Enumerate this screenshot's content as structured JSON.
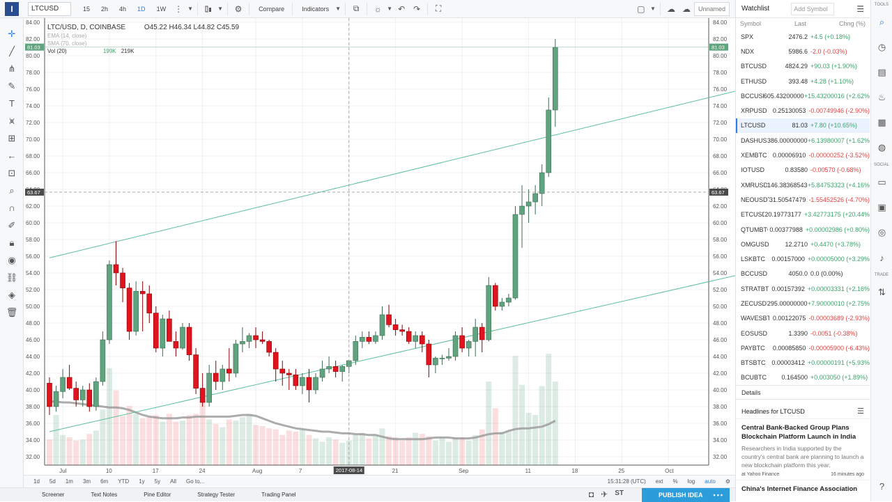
{
  "topbar": {
    "logo": "I",
    "symbol": "LTCUSD",
    "intervals": [
      "15",
      "2h",
      "4h",
      "1D",
      "1W"
    ],
    "active_interval": "1D",
    "compare": "Compare",
    "indicators": "Indicators",
    "layout_name": "Unnamed"
  },
  "legend": {
    "title": "LTC/USD, D, COINBASE",
    "open": "O45.22",
    "high": "H46.34",
    "low": "L44.82",
    "close": "C45.59",
    "ema14": "EMA (14, close)",
    "sma70": "SMA (70, close)",
    "vol": "Vol (20)",
    "vol_a": "199K",
    "vol_b": "219K"
  },
  "chart_data": {
    "type": "candlestick",
    "symbol": "LTC/USD",
    "y_ticks": [
      32,
      34,
      36,
      38,
      40,
      42,
      44,
      46,
      48,
      50,
      52,
      54,
      56,
      58,
      60,
      62,
      64,
      66,
      68,
      70,
      72,
      74,
      76,
      78,
      80,
      82,
      84
    ],
    "ylim": [
      31,
      84.5
    ],
    "x_ticks": [
      "Jul",
      "10",
      "17",
      "24",
      "Aug",
      "7",
      "14",
      "21",
      "Sep",
      "11",
      "18",
      "25",
      "Oct"
    ],
    "crosshair_price": "63.67",
    "crosshair_date": "2017-08-14",
    "last_price": "81.03",
    "candles": [
      [
        40.8,
        41.5,
        37.0,
        38.0
      ],
      [
        38.0,
        40.5,
        37.4,
        39.8
      ],
      [
        39.8,
        42.5,
        39.0,
        41.5
      ],
      [
        41.5,
        43.0,
        40.0,
        40.2
      ],
      [
        40.2,
        41.0,
        38.0,
        38.8
      ],
      [
        38.8,
        40.5,
        38.0,
        40.0
      ],
      [
        40.0,
        40.8,
        37.4,
        38.0
      ],
      [
        38.0,
        41.5,
        37.5,
        41.0
      ],
      [
        41.0,
        47.0,
        40.5,
        46.0
      ],
      [
        46.0,
        55.5,
        45.5,
        55.0
      ],
      [
        55.0,
        57.8,
        52.5,
        54.0
      ],
      [
        54.0,
        54.6,
        50.5,
        52.2
      ],
      [
        52.2,
        52.8,
        46.0,
        47.0
      ],
      [
        47.0,
        53.0,
        46.5,
        51.8
      ],
      [
        51.8,
        53.0,
        47.0,
        51.5
      ],
      [
        51.5,
        52.5,
        48.0,
        49.2
      ],
      [
        49.2,
        50.0,
        44.5,
        45.0
      ],
      [
        45.0,
        49.0,
        44.0,
        48.5
      ],
      [
        48.5,
        49.5,
        46.0,
        45.8
      ],
      [
        45.8,
        47.0,
        44.0,
        45.0
      ],
      [
        45.0,
        48.0,
        44.8,
        47.5
      ],
      [
        47.5,
        48.0,
        43.5,
        44.2
      ],
      [
        44.2,
        45.0,
        39.5,
        40.2
      ],
      [
        40.2,
        42.0,
        38.0,
        38.5
      ],
      [
        38.5,
        43.0,
        38.0,
        42.0
      ],
      [
        42.0,
        43.5,
        40.0,
        41.0
      ],
      [
        41.0,
        43.0,
        40.0,
        42.5
      ],
      [
        42.5,
        45.0,
        41.0,
        42.0
      ],
      [
        42.0,
        46.0,
        41.5,
        45.5
      ],
      [
        45.5,
        47.5,
        44.5,
        45.8
      ],
      [
        45.8,
        46.8,
        45.0,
        46.5
      ],
      [
        46.5,
        47.5,
        45.0,
        46.0
      ],
      [
        46.0,
        47.0,
        45.5,
        45.8
      ],
      [
        45.8,
        46.0,
        44.0,
        44.5
      ],
      [
        44.5,
        45.0,
        41.0,
        42.5
      ],
      [
        42.5,
        43.5,
        40.5,
        42.0
      ],
      [
        42.0,
        42.5,
        40.0,
        41.8
      ],
      [
        41.8,
        42.5,
        40.0,
        40.5
      ],
      [
        40.5,
        42.0,
        39.5,
        41.5
      ],
      [
        41.5,
        42.5,
        38.5,
        40.0
      ],
      [
        40.0,
        42.0,
        39.5,
        41.5
      ],
      [
        41.5,
        43.5,
        41.0,
        42.5
      ],
      [
        42.5,
        44.0,
        42.0,
        42.8
      ],
      [
        42.8,
        43.5,
        41.5,
        42.2
      ],
      [
        42.2,
        43.0,
        41.0,
        42.8
      ],
      [
        42.8,
        43.5,
        42.0,
        43.5
      ],
      [
        43.5,
        46.5,
        43.0,
        45.8
      ],
      [
        45.8,
        47.0,
        45.0,
        46.3
      ],
      [
        46.3,
        47.0,
        45.5,
        45.8
      ],
      [
        45.8,
        47.0,
        45.5,
        46.5
      ],
      [
        46.5,
        50.0,
        46.0,
        49.0
      ],
      [
        49.0,
        50.2,
        47.5,
        47.8
      ],
      [
        47.8,
        48.5,
        46.5,
        47.2
      ],
      [
        47.2,
        47.8,
        46.5,
        47.0
      ],
      [
        47.0,
        47.5,
        45.5,
        45.8
      ],
      [
        45.8,
        47.0,
        45.0,
        46.5
      ],
      [
        46.5,
        47.0,
        44.5,
        45.5
      ],
      [
        45.5,
        46.0,
        41.5,
        43.0
      ],
      [
        43.0,
        44.0,
        42.0,
        43.8
      ],
      [
        43.8,
        44.2,
        43.0,
        43.8
      ],
      [
        43.8,
        45.0,
        43.5,
        44.0
      ],
      [
        44.0,
        47.0,
        43.5,
        46.5
      ],
      [
        46.5,
        47.5,
        44.5,
        45.0
      ],
      [
        45.0,
        46.0,
        44.0,
        45.8
      ],
      [
        45.8,
        48.5,
        44.0,
        47.5
      ],
      [
        47.5,
        48.0,
        44.5,
        46.0
      ],
      [
        46.0,
        53.5,
        45.8,
        52.5
      ],
      [
        52.5,
        52.8,
        49.5,
        50.0
      ],
      [
        50.0,
        51.0,
        49.5,
        50.5
      ],
      [
        50.5,
        51.5,
        50.0,
        51.0
      ],
      [
        51.0,
        62.0,
        50.8,
        61.0
      ],
      [
        61.0,
        64.5,
        57.0,
        62.0
      ],
      [
        62.0,
        64.0,
        60.0,
        62.5
      ],
      [
        62.5,
        64.5,
        61.0,
        63.5
      ],
      [
        63.5,
        67.0,
        62.0,
        66.0
      ],
      [
        66.0,
        75.0,
        65.5,
        73.5
      ],
      [
        73.5,
        82.0,
        71.5,
        81.0
      ]
    ],
    "volumes": [
      0.23,
      0.45,
      0.27,
      0.25,
      0.22,
      0.23,
      0.28,
      0.31,
      0.5,
      0.87,
      0.67,
      0.44,
      0.53,
      0.46,
      0.42,
      0.43,
      0.45,
      0.39,
      0.46,
      0.39,
      0.4,
      0.45,
      0.46,
      0.58,
      0.41,
      0.37,
      0.34,
      0.41,
      0.4,
      0.43,
      0.46,
      0.36,
      0.35,
      0.33,
      0.32,
      0.27,
      0.31,
      0.3,
      0.32,
      0.27,
      0.24,
      0.21,
      0.25,
      0.23,
      0.2,
      0.22,
      0.27,
      0.29,
      0.24,
      0.27,
      0.33,
      0.26,
      0.25,
      0.22,
      0.25,
      0.29,
      0.28,
      0.26,
      0.22,
      0.24,
      0.21,
      0.25,
      0.25,
      0.22,
      0.27,
      0.32,
      0.75,
      0.51,
      0.3,
      0.31,
      0.98,
      0.72,
      0.47,
      0.45,
      0.71,
      1.0,
      0.75
    ],
    "ma_line": [
      38.6,
      38.6,
      38.5,
      38.5,
      38.4,
      38.3,
      38.2,
      38.1,
      38.0,
      37.9,
      37.9,
      37.8,
      37.6,
      37.3,
      37.0,
      36.8,
      36.7,
      36.6,
      36.6,
      36.6,
      36.7,
      36.7,
      36.8,
      36.8,
      36.8,
      36.8,
      36.8,
      36.8,
      36.9,
      37.0,
      37.0,
      36.9,
      36.6,
      36.3,
      36.0,
      35.8,
      35.6,
      35.4,
      35.3,
      35.2,
      35.1,
      35.0,
      35.0,
      34.9,
      34.8,
      34.8,
      34.7,
      34.7,
      34.6,
      34.6,
      34.4,
      34.2,
      34.1,
      34.1,
      34.1,
      34.1,
      34.1,
      34.2,
      34.3,
      34.3,
      34.3,
      34.2,
      34.2,
      34.2,
      34.3,
      34.5,
      34.7,
      34.8,
      34.8,
      35.1,
      35.3,
      35.4,
      35.4,
      35.5,
      35.6,
      35.9,
      36.3
    ],
    "trendlines": [
      {
        "from": [
          0,
          55.8
        ],
        "to": [
          110,
          77.1
        ]
      },
      {
        "from": [
          0,
          35.0
        ],
        "to": [
          128,
          58.2
        ]
      }
    ]
  },
  "bottombar": {
    "ranges": [
      "1d",
      "5d",
      "1m",
      "3m",
      "6m",
      "YTD",
      "1y",
      "5y",
      "All"
    ],
    "goto": "Go to...",
    "time": "15:31:28 (UTC)",
    "opts": [
      "ext",
      "%",
      "log",
      "auto"
    ]
  },
  "footer": {
    "tabs": [
      "Screener",
      "Text Notes",
      "Pine Editor",
      "Strategy Tester",
      "Trading Panel"
    ],
    "publish": "PUBLISH IDEA"
  },
  "watchlist": {
    "title": "Watchlist",
    "add_placeholder": "Add Symbol",
    "col_symbol": "Symbol",
    "col_last": "Last",
    "col_chg": "Chng (%)",
    "rows": [
      {
        "sym": "SPX",
        "last": "2476.2",
        "chg": "+4.5 (+0.18%)",
        "dir": "up"
      },
      {
        "sym": "NDX",
        "last": "5986.6",
        "chg": "-2.0 (-0.03%)",
        "dir": "down"
      },
      {
        "sym": "BTCUSD",
        "last": "4824.29",
        "chg": "+90.03 (+1.90%)",
        "dir": "up"
      },
      {
        "sym": "ETHUSD",
        "last": "393.48",
        "chg": "+4.28 (+1.10%)",
        "dir": "up"
      },
      {
        "sym": "BCCUSD",
        "last": "605.43200000",
        "chg": "+15.43200016 (+2.62%",
        "dir": "up"
      },
      {
        "sym": "XRPUSD",
        "last": "0.25130053",
        "chg": "-0.00749946 (-2.90%)",
        "dir": "down"
      },
      {
        "sym": "LTCUSD",
        "last": "81.03",
        "chg": "+7.80 (+10.65%)",
        "dir": "up",
        "selected": true
      },
      {
        "sym": "DASHUSD",
        "last": "386.00000000",
        "chg": "+6.13980007 (+1.62%",
        "dir": "up"
      },
      {
        "sym": "XEMBTC",
        "last": "0.00006910",
        "chg": "-0.00000252 (-3.52%)",
        "dir": "down"
      },
      {
        "sym": "IOTUSD",
        "last": "0.83580",
        "chg": "-0.00570 (-0.68%)",
        "dir": "down"
      },
      {
        "sym": "XMRUSDT",
        "last": "146.38368543",
        "chg": "+5.84753323 (+4.16%",
        "dir": "up"
      },
      {
        "sym": "NEOUSDT",
        "last": "31.50547479",
        "chg": "-1.55452526 (-4.70%)",
        "dir": "down"
      },
      {
        "sym": "ETCUSDT",
        "last": "20.19773177",
        "chg": "+3.42773175 (+20.44%",
        "dir": "up"
      },
      {
        "sym": "QTUMBTC",
        "last": "0.00377988",
        "chg": "+0.00002986 (+0.80%)",
        "dir": "up"
      },
      {
        "sym": "OMGUSD",
        "last": "12.2710",
        "chg": "+0.4470 (+3.78%)",
        "dir": "up"
      },
      {
        "sym": "LSKBTC",
        "last": "0.00157000",
        "chg": "+0.00005000 (+3.29%",
        "dir": "up"
      },
      {
        "sym": "BCCUSD",
        "last": "4050.0",
        "chg": "0.0 (0.00%)",
        "dir": "flat"
      },
      {
        "sym": "STRATBTC",
        "last": "0.00157392",
        "chg": "+0.00003331 (+2.16%",
        "dir": "up"
      },
      {
        "sym": "ZECUSDT",
        "last": "295.00000000",
        "chg": "+7.90000010 (+2.75%",
        "dir": "up"
      },
      {
        "sym": "WAVESBTC",
        "last": "0.00122075",
        "chg": "-0.00003689 (-2.93%)",
        "dir": "down"
      },
      {
        "sym": "EOSUSD",
        "last": "1.3390",
        "chg": "-0.0051 (-0.38%)",
        "dir": "down"
      },
      {
        "sym": "PAYBTC",
        "last": "0.00085850",
        "chg": "-0.00005900 (-6.43%)",
        "dir": "down"
      },
      {
        "sym": "BTSBTC",
        "last": "0.00003412",
        "chg": "+0.00000191 (+5.93%",
        "dir": "up"
      },
      {
        "sym": "BCUBTC",
        "last": "0.164500",
        "chg": "+0.003050 (+1.89%)",
        "dir": "up"
      }
    ]
  },
  "details": "Details",
  "headlines": {
    "title": "Headlines for LTCUSD",
    "news1_title": "Central Bank-Backed Group Plans Blockchain Platform Launch in India",
    "news1_body": "Researchers in India supported by the country's central bank are planning to launch a new blockchain platform this year.",
    "news1_source": "at Yahoo Finance",
    "news1_time": "16 minutes ago",
    "news2_title": "China's Internet Finance Association"
  },
  "rightbar": {
    "tools": "TOOLS",
    "social": "SOCIAL",
    "trade": "TRADE"
  },
  "colors": {
    "up": "#5fa47e",
    "down": "#e0141e",
    "trend": "#5bbf9a",
    "ma": "#9e9e9e",
    "accent": "#2d7fe5"
  }
}
